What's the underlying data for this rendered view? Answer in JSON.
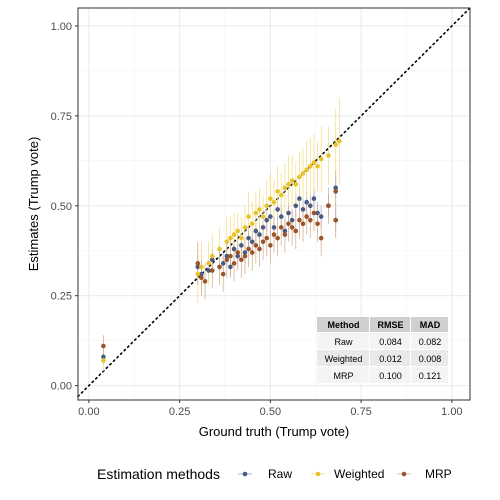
{
  "chart_data": {
    "type": "scatter",
    "title": "",
    "xlabel": "Ground truth (Trump vote)",
    "ylabel": "Estimates (Trump vote)",
    "xlim": [
      -0.03,
      1.05
    ],
    "ylim": [
      -0.04,
      1.05
    ],
    "xticks": [
      "0.00",
      "0.25",
      "0.50",
      "0.75",
      "1.00"
    ],
    "yticks": [
      "0.00",
      "0.25",
      "0.50",
      "0.75",
      "1.00"
    ],
    "grid": true,
    "reference_line": "y = x (dotted)",
    "legend": {
      "title": "Estimation methods",
      "placement": "bottom",
      "entries": [
        "Raw",
        "Weighted",
        "MRP"
      ]
    },
    "colors": {
      "Raw": "#4a5a82",
      "Weighted": "#e8c229",
      "MRP": "#9a5428",
      "Weighted_errorbar": "#f2dc7a",
      "MRP_errorbar": "#d2a88a",
      "Raw_errorbar": "#9aa6c4"
    },
    "series": [
      {
        "name": "Raw",
        "points": [
          [
            0.04,
            0.08
          ],
          [
            0.3,
            0.33
          ],
          [
            0.31,
            0.31
          ],
          [
            0.33,
            0.32
          ],
          [
            0.34,
            0.35
          ],
          [
            0.37,
            0.34
          ],
          [
            0.38,
            0.36
          ],
          [
            0.39,
            0.33
          ],
          [
            0.4,
            0.38
          ],
          [
            0.41,
            0.36
          ],
          [
            0.42,
            0.39
          ],
          [
            0.43,
            0.37
          ],
          [
            0.44,
            0.41
          ],
          [
            0.45,
            0.4
          ],
          [
            0.46,
            0.43
          ],
          [
            0.47,
            0.42
          ],
          [
            0.48,
            0.44
          ],
          [
            0.49,
            0.46
          ],
          [
            0.5,
            0.47
          ],
          [
            0.51,
            0.44
          ],
          [
            0.52,
            0.49
          ],
          [
            0.53,
            0.47
          ],
          [
            0.54,
            0.43
          ],
          [
            0.55,
            0.48
          ],
          [
            0.56,
            0.46
          ],
          [
            0.57,
            0.5
          ],
          [
            0.58,
            0.52
          ],
          [
            0.59,
            0.49
          ],
          [
            0.6,
            0.51
          ],
          [
            0.61,
            0.5
          ],
          [
            0.62,
            0.52
          ],
          [
            0.63,
            0.48
          ],
          [
            0.64,
            0.47
          ],
          [
            0.66,
            0.5
          ],
          [
            0.68,
            0.55
          ],
          [
            0.68,
            0.46
          ]
        ],
        "errors": [
          0.02,
          0.03,
          0.03,
          0.03,
          0.03,
          0.03,
          0.03,
          0.03,
          0.03,
          0.03,
          0.03,
          0.03,
          0.03,
          0.03,
          0.03,
          0.03,
          0.03,
          0.03,
          0.03,
          0.03,
          0.03,
          0.03,
          0.03,
          0.03,
          0.03,
          0.03,
          0.03,
          0.03,
          0.03,
          0.03,
          0.03,
          0.03,
          0.03,
          0.03,
          0.03,
          0.03
        ]
      },
      {
        "name": "Weighted",
        "points": [
          [
            0.04,
            0.07
          ],
          [
            0.3,
            0.31
          ],
          [
            0.31,
            0.33
          ],
          [
            0.33,
            0.34
          ],
          [
            0.34,
            0.36
          ],
          [
            0.36,
            0.38
          ],
          [
            0.38,
            0.4
          ],
          [
            0.39,
            0.41
          ],
          [
            0.4,
            0.42
          ],
          [
            0.41,
            0.43
          ],
          [
            0.42,
            0.41
          ],
          [
            0.43,
            0.44
          ],
          [
            0.44,
            0.47
          ],
          [
            0.45,
            0.45
          ],
          [
            0.46,
            0.48
          ],
          [
            0.47,
            0.49
          ],
          [
            0.48,
            0.47
          ],
          [
            0.49,
            0.5
          ],
          [
            0.5,
            0.52
          ],
          [
            0.51,
            0.51
          ],
          [
            0.52,
            0.54
          ],
          [
            0.53,
            0.53
          ],
          [
            0.54,
            0.55
          ],
          [
            0.55,
            0.56
          ],
          [
            0.56,
            0.57
          ],
          [
            0.57,
            0.56
          ],
          [
            0.58,
            0.58
          ],
          [
            0.59,
            0.59
          ],
          [
            0.6,
            0.6
          ],
          [
            0.61,
            0.61
          ],
          [
            0.62,
            0.62
          ],
          [
            0.63,
            0.61
          ],
          [
            0.64,
            0.63
          ],
          [
            0.66,
            0.64
          ],
          [
            0.68,
            0.67
          ],
          [
            0.69,
            0.68
          ]
        ],
        "errors": [
          0.03,
          0.08,
          0.07,
          0.06,
          0.06,
          0.06,
          0.07,
          0.06,
          0.06,
          0.05,
          0.06,
          0.06,
          0.07,
          0.06,
          0.06,
          0.06,
          0.06,
          0.07,
          0.07,
          0.06,
          0.07,
          0.06,
          0.07,
          0.08,
          0.07,
          0.06,
          0.07,
          0.07,
          0.08,
          0.08,
          0.08,
          0.07,
          0.09,
          0.08,
          0.1,
          0.12
        ]
      },
      {
        "name": "MRP",
        "points": [
          [
            0.04,
            0.11
          ],
          [
            0.3,
            0.34
          ],
          [
            0.31,
            0.3
          ],
          [
            0.32,
            0.29
          ],
          [
            0.34,
            0.32
          ],
          [
            0.36,
            0.33
          ],
          [
            0.37,
            0.31
          ],
          [
            0.38,
            0.35
          ],
          [
            0.39,
            0.36
          ],
          [
            0.4,
            0.34
          ],
          [
            0.41,
            0.37
          ],
          [
            0.42,
            0.35
          ],
          [
            0.43,
            0.36
          ],
          [
            0.44,
            0.38
          ],
          [
            0.45,
            0.37
          ],
          [
            0.46,
            0.39
          ],
          [
            0.47,
            0.38
          ],
          [
            0.48,
            0.4
          ],
          [
            0.49,
            0.41
          ],
          [
            0.5,
            0.39
          ],
          [
            0.51,
            0.42
          ],
          [
            0.52,
            0.41
          ],
          [
            0.53,
            0.44
          ],
          [
            0.54,
            0.42
          ],
          [
            0.55,
            0.45
          ],
          [
            0.56,
            0.44
          ],
          [
            0.57,
            0.43
          ],
          [
            0.58,
            0.46
          ],
          [
            0.59,
            0.45
          ],
          [
            0.6,
            0.47
          ],
          [
            0.61,
            0.46
          ],
          [
            0.62,
            0.48
          ],
          [
            0.63,
            0.45
          ],
          [
            0.64,
            0.41
          ],
          [
            0.66,
            0.5
          ],
          [
            0.68,
            0.54
          ],
          [
            0.68,
            0.46
          ]
        ],
        "errors": [
          0.03,
          0.06,
          0.05,
          0.05,
          0.05,
          0.05,
          0.05,
          0.05,
          0.05,
          0.05,
          0.05,
          0.05,
          0.05,
          0.05,
          0.05,
          0.05,
          0.05,
          0.05,
          0.05,
          0.05,
          0.05,
          0.05,
          0.05,
          0.05,
          0.05,
          0.05,
          0.05,
          0.05,
          0.05,
          0.05,
          0.05,
          0.05,
          0.05,
          0.05,
          0.05,
          0.06,
          0.05
        ]
      }
    ],
    "table": {
      "headers": [
        "Method",
        "RMSE",
        "MAD"
      ],
      "rows": [
        [
          "Raw",
          "0.084",
          "0.082"
        ],
        [
          "Weighted",
          "0.012",
          "0.008"
        ],
        [
          "MRP",
          "0.100",
          "0.121"
        ]
      ]
    }
  }
}
